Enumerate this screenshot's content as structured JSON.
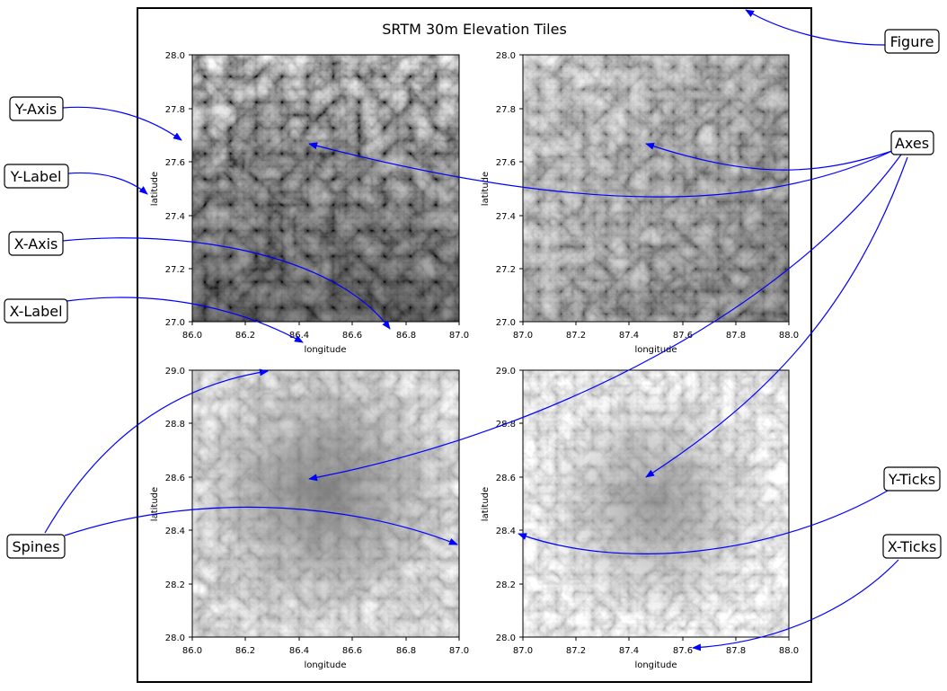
{
  "figure": {
    "title": "SRTM 30m Elevation Tiles"
  },
  "panels": [
    {
      "xlabel": "longitude",
      "ylabel": "latitude",
      "xticks": [
        "86.0",
        "86.2",
        "86.4",
        "86.6",
        "86.8",
        "87.0"
      ],
      "yticks": [
        "27.0",
        "27.2",
        "27.4",
        "27.6",
        "27.8",
        "28.0"
      ],
      "texture": "dark-rivers"
    },
    {
      "xlabel": "longitude",
      "ylabel": "latitude",
      "xticks": [
        "87.0",
        "87.2",
        "87.4",
        "87.6",
        "87.8",
        "88.0"
      ],
      "yticks": [
        "27.0",
        "27.2",
        "27.4",
        "27.6",
        "27.8",
        "28.0"
      ],
      "texture": "dark-basin"
    },
    {
      "xlabel": "longitude",
      "ylabel": "latitude",
      "xticks": [
        "86.0",
        "86.2",
        "86.4",
        "86.6",
        "86.8",
        "87.0"
      ],
      "yticks": [
        "28.0",
        "28.2",
        "28.4",
        "28.6",
        "28.8",
        "29.0"
      ],
      "texture": "gray-plateau"
    },
    {
      "xlabel": "longitude",
      "ylabel": "latitude",
      "xticks": [
        "87.0",
        "87.2",
        "87.4",
        "87.6",
        "87.8",
        "88.0"
      ],
      "yticks": [
        "28.0",
        "28.2",
        "28.4",
        "28.6",
        "28.8",
        "29.0"
      ],
      "texture": "light-ridges"
    }
  ],
  "callouts": {
    "figure": "Figure",
    "axes": "Axes",
    "y_axis": "Y-Axis",
    "y_label": "Y-Label",
    "x_axis": "X-Axis",
    "x_label": "X-Label",
    "spines": "Spines",
    "y_ticks": "Y-Ticks",
    "x_ticks": "X-Ticks"
  },
  "colors": {
    "arrow": "#0000ff",
    "frame": "#000000",
    "background": "#ffffff"
  }
}
